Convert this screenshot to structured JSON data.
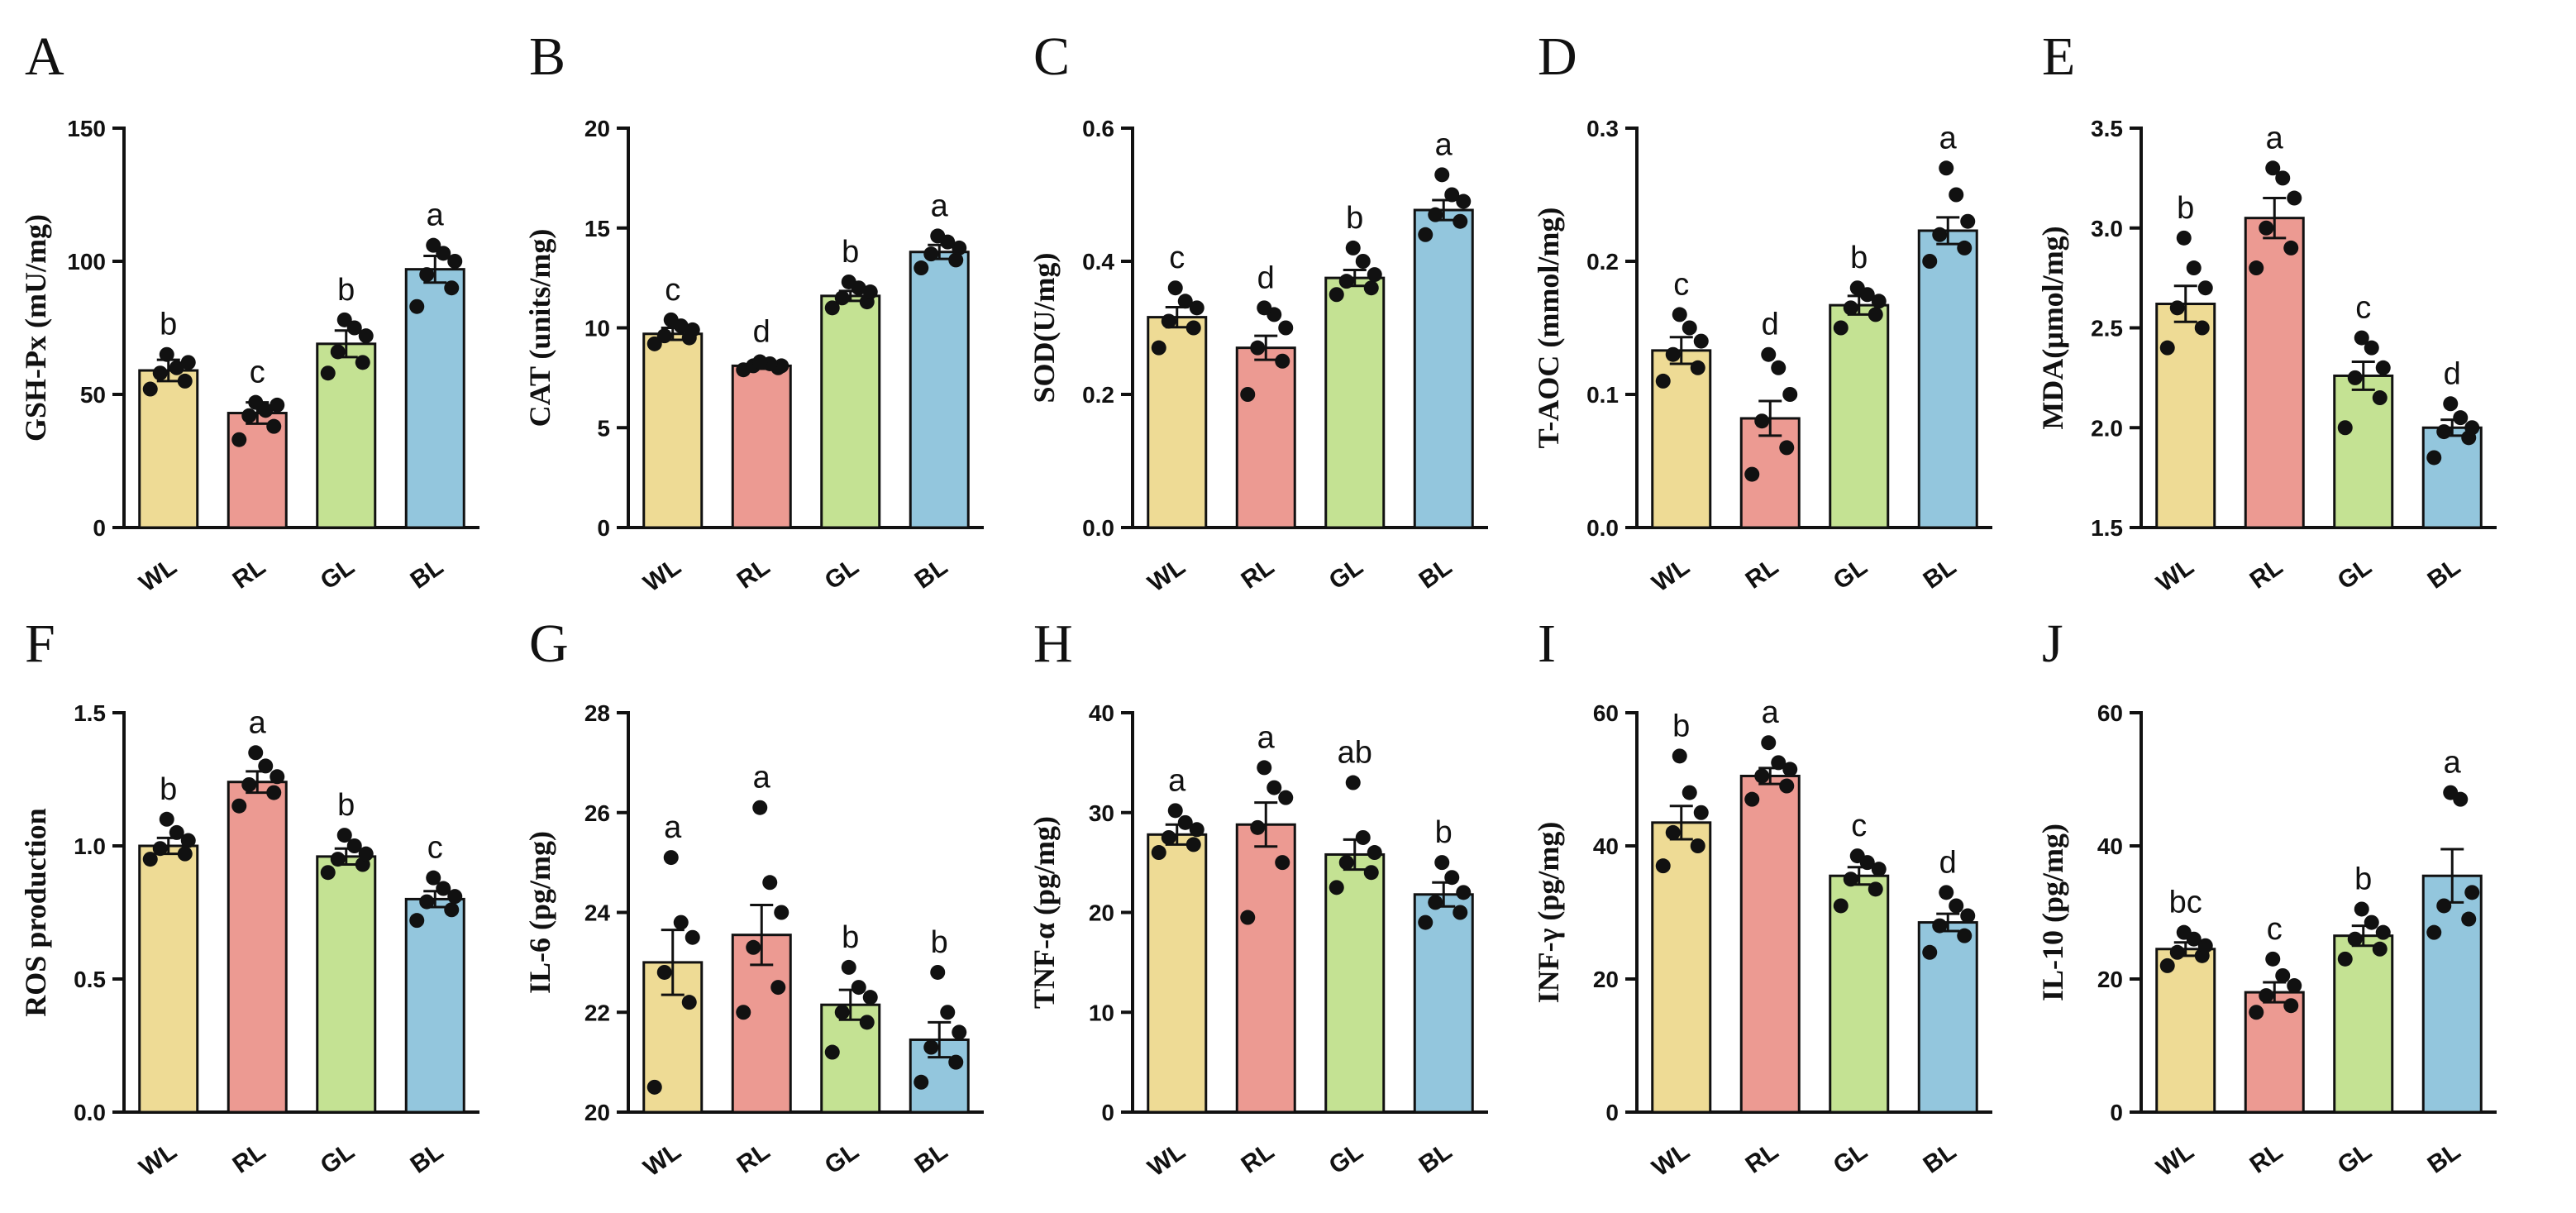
{
  "chart_data": [
    {
      "type": "bar",
      "panel": "A",
      "ylabel": "GSH-Px (mU/mg)",
      "ylim": [
        0,
        150
      ],
      "yticks": [
        0,
        50,
        100,
        150
      ],
      "categories": [
        "WL",
        "RL",
        "GL",
        "BL"
      ],
      "values": [
        59,
        43,
        69,
        97
      ],
      "errors": [
        4,
        4,
        5,
        5
      ],
      "letters": [
        "b",
        "c",
        "b",
        "a"
      ],
      "points": [
        [
          52,
          55,
          58,
          62,
          60,
          65
        ],
        [
          33,
          38,
          42,
          46,
          44,
          47
        ],
        [
          58,
          62,
          66,
          72,
          75,
          78
        ],
        [
          83,
          90,
          95,
          100,
          103,
          106
        ]
      ]
    },
    {
      "type": "bar",
      "panel": "B",
      "ylabel": "CAT (units/mg)",
      "ylim": [
        0,
        20
      ],
      "yticks": [
        0,
        5,
        10,
        15,
        20
      ],
      "categories": [
        "WL",
        "RL",
        "GL",
        "BL"
      ],
      "values": [
        9.7,
        8.1,
        11.6,
        13.8
      ],
      "errors": [
        0.3,
        0.15,
        0.25,
        0.35
      ],
      "letters": [
        "c",
        "d",
        "b",
        "a"
      ],
      "points": [
        [
          9.2,
          9.5,
          9.6,
          9.9,
          10.1,
          10.4
        ],
        [
          7.9,
          8.0,
          8.1,
          8.1,
          8.2,
          8.3
        ],
        [
          11.0,
          11.3,
          11.5,
          11.8,
          12.0,
          12.3
        ],
        [
          13.0,
          13.4,
          13.7,
          14.0,
          14.3,
          14.6
        ]
      ]
    },
    {
      "type": "bar",
      "panel": "C",
      "ylabel": "SOD(U/mg)",
      "ylim": [
        0,
        0.6
      ],
      "yticks": [
        0.0,
        0.2,
        0.4,
        0.6
      ],
      "categories": [
        "WL",
        "RL",
        "GL",
        "BL"
      ],
      "values": [
        0.316,
        0.27,
        0.375,
        0.477
      ],
      "errors": [
        0.015,
        0.018,
        0.012,
        0.015
      ],
      "letters": [
        "c",
        "d",
        "b",
        "a"
      ],
      "points": [
        [
          0.27,
          0.3,
          0.31,
          0.33,
          0.34,
          0.36
        ],
        [
          0.2,
          0.25,
          0.27,
          0.3,
          0.32,
          0.33
        ],
        [
          0.35,
          0.36,
          0.37,
          0.38,
          0.4,
          0.42
        ],
        [
          0.44,
          0.46,
          0.47,
          0.49,
          0.5,
          0.53
        ]
      ]
    },
    {
      "type": "bar",
      "panel": "D",
      "ylabel": "T-AOC (mmol/mg)",
      "ylim": [
        0,
        0.3
      ],
      "yticks": [
        0.0,
        0.1,
        0.2,
        0.3
      ],
      "categories": [
        "WL",
        "RL",
        "GL",
        "BL"
      ],
      "values": [
        0.133,
        0.082,
        0.167,
        0.223
      ],
      "errors": [
        0.01,
        0.013,
        0.007,
        0.01
      ],
      "letters": [
        "c",
        "d",
        "b",
        "a"
      ],
      "points": [
        [
          0.11,
          0.12,
          0.13,
          0.14,
          0.15,
          0.16
        ],
        [
          0.04,
          0.06,
          0.08,
          0.1,
          0.12,
          0.13
        ],
        [
          0.15,
          0.16,
          0.165,
          0.17,
          0.175,
          0.18
        ],
        [
          0.2,
          0.21,
          0.22,
          0.23,
          0.25,
          0.27
        ]
      ]
    },
    {
      "type": "bar",
      "panel": "E",
      "ylabel": "MDA(μmol/mg)",
      "ylim": [
        1.5,
        3.5
      ],
      "yticks": [
        1.5,
        2.0,
        2.5,
        3.0,
        3.5
      ],
      "categories": [
        "WL",
        "RL",
        "GL",
        "BL"
      ],
      "values": [
        2.62,
        3.05,
        2.26,
        2.0
      ],
      "errors": [
        0.09,
        0.1,
        0.07,
        0.04
      ],
      "letters": [
        "b",
        "a",
        "c",
        "d"
      ],
      "points": [
        [
          2.4,
          2.5,
          2.6,
          2.7,
          2.8,
          2.95
        ],
        [
          2.8,
          2.9,
          3.0,
          3.15,
          3.25,
          3.3
        ],
        [
          2.0,
          2.15,
          2.25,
          2.3,
          2.4,
          2.45
        ],
        [
          1.85,
          1.95,
          1.98,
          2.0,
          2.05,
          2.12
        ]
      ]
    },
    {
      "type": "bar",
      "panel": "F",
      "ylabel": "ROS production",
      "ylim": [
        0,
        1.5
      ],
      "yticks": [
        0.0,
        0.5,
        1.0,
        1.5
      ],
      "categories": [
        "WL",
        "RL",
        "GL",
        "BL"
      ],
      "values": [
        1.0,
        1.24,
        0.96,
        0.8
      ],
      "errors": [
        0.03,
        0.04,
        0.03,
        0.03
      ],
      "letters": [
        "b",
        "a",
        "b",
        "c"
      ],
      "points": [
        [
          0.95,
          0.97,
          0.99,
          1.02,
          1.05,
          1.1
        ],
        [
          1.15,
          1.2,
          1.23,
          1.26,
          1.3,
          1.35
        ],
        [
          0.9,
          0.93,
          0.95,
          0.97,
          1.0,
          1.04
        ],
        [
          0.72,
          0.76,
          0.79,
          0.81,
          0.84,
          0.88
        ]
      ]
    },
    {
      "type": "bar",
      "panel": "G",
      "ylabel": "IL-6 (pg/mg)",
      "ylim": [
        20,
        28
      ],
      "yticks": [
        20,
        22,
        24,
        26,
        28
      ],
      "categories": [
        "WL",
        "RL",
        "GL",
        "BL"
      ],
      "values": [
        23.0,
        23.55,
        22.15,
        21.45
      ],
      "errors": [
        0.65,
        0.6,
        0.3,
        0.35
      ],
      "letters": [
        "a",
        "a",
        "b",
        "b"
      ],
      "points": [
        [
          20.5,
          22.2,
          22.8,
          23.5,
          23.8,
          25.1
        ],
        [
          22.0,
          22.5,
          23.3,
          24.0,
          24.6,
          26.1
        ],
        [
          21.2,
          21.8,
          22.0,
          22.3,
          22.5,
          22.9
        ],
        [
          20.6,
          21.0,
          21.3,
          21.6,
          22.0,
          22.8
        ]
      ]
    },
    {
      "type": "bar",
      "panel": "H",
      "ylabel": "TNF-α (pg/mg)",
      "ylim": [
        0,
        40
      ],
      "yticks": [
        0,
        10,
        20,
        30,
        40
      ],
      "categories": [
        "WL",
        "RL",
        "GL",
        "BL"
      ],
      "values": [
        27.8,
        28.8,
        25.8,
        21.8
      ],
      "errors": [
        1.0,
        2.2,
        1.5,
        1.2
      ],
      "letters": [
        "a",
        "a",
        "ab",
        "b"
      ],
      "points": [
        [
          26.0,
          26.8,
          27.5,
          28.3,
          29.0,
          30.2
        ],
        [
          19.5,
          25.0,
          28.5,
          31.5,
          32.5,
          34.5
        ],
        [
          22.5,
          24.0,
          25.0,
          26.0,
          27.5,
          33.0
        ],
        [
          19.0,
          20.0,
          21.0,
          22.0,
          23.5,
          25.0
        ]
      ]
    },
    {
      "type": "bar",
      "panel": "I",
      "ylabel": "INF-γ (pg/mg)",
      "ylim": [
        0,
        60
      ],
      "yticks": [
        0,
        20,
        40,
        60
      ],
      "categories": [
        "WL",
        "RL",
        "GL",
        "BL"
      ],
      "values": [
        43.5,
        50.5,
        35.5,
        28.5
      ],
      "errors": [
        2.5,
        1.2,
        1.3,
        1.3
      ],
      "letters": [
        "b",
        "a",
        "c",
        "d"
      ],
      "points": [
        [
          37.0,
          40.0,
          42.0,
          45.0,
          48.0,
          53.5
        ],
        [
          47.0,
          49.0,
          50.5,
          51.5,
          52.5,
          55.5
        ],
        [
          31.0,
          33.5,
          35.0,
          36.5,
          37.5,
          38.5
        ],
        [
          24.0,
          26.5,
          28.0,
          29.5,
          31.0,
          33.0
        ]
      ]
    },
    {
      "type": "bar",
      "panel": "J",
      "ylabel": "IL-10 (pg/mg)",
      "ylim": [
        0,
        60
      ],
      "yticks": [
        0,
        20,
        40,
        60
      ],
      "categories": [
        "WL",
        "RL",
        "GL",
        "BL"
      ],
      "values": [
        24.5,
        18.0,
        26.5,
        35.5
      ],
      "errors": [
        1.0,
        1.5,
        1.5,
        4.0
      ],
      "letters": [
        "bc",
        "c",
        "b",
        "a"
      ],
      "points": [
        [
          22.0,
          23.5,
          24.0,
          25.0,
          26.0,
          27.0
        ],
        [
          15.0,
          16.0,
          17.5,
          19.0,
          20.5,
          23.0
        ],
        [
          23.0,
          24.5,
          26.0,
          27.0,
          28.5,
          30.5
        ],
        [
          27.0,
          29.0,
          31.0,
          33.0,
          47.0,
          48.0
        ]
      ]
    }
  ],
  "colors": {
    "bars": [
      "#EEDB95",
      "#EC9A92",
      "#C4E293",
      "#93C6DD"
    ],
    "outline": "#111111",
    "dots": "#111111"
  }
}
